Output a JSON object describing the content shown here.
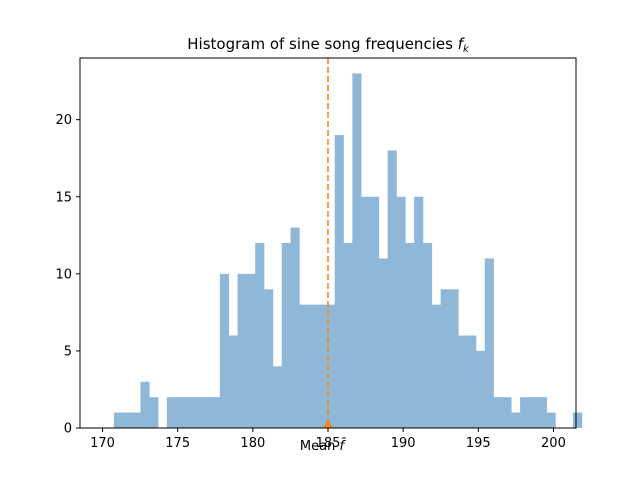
{
  "chart_data": {
    "type": "bar",
    "title_text": "Histogram of sine song frequencies ",
    "title_math": "f",
    "title_subscript": "k",
    "xlabel": "",
    "ylabel": "",
    "xlim": [
      168.5,
      201.5
    ],
    "ylim": [
      0,
      24
    ],
    "xticks": [
      170,
      175,
      180,
      185,
      190,
      195,
      200
    ],
    "yticks": [
      0,
      5,
      10,
      15,
      20
    ],
    "bin_start": 170.76,
    "bin_width": 0.5874,
    "counts": [
      1,
      1,
      1,
      3,
      2,
      0,
      2,
      2,
      2,
      2,
      2,
      2,
      10,
      6,
      10,
      10,
      12,
      9,
      4,
      12,
      13,
      8,
      8,
      8,
      8,
      19,
      12,
      23,
      15,
      15,
      11,
      18,
      15,
      12,
      15,
      12,
      8,
      9,
      9,
      6,
      6,
      5,
      11,
      2,
      2,
      1,
      2,
      2,
      2,
      1,
      0,
      0,
      1
    ],
    "mean_value": 185.0,
    "mean_label": "Mean ",
    "mean_symbol": "f̄",
    "bar_color": "#8fb8d8",
    "mean_color": "#ff7f0e"
  }
}
